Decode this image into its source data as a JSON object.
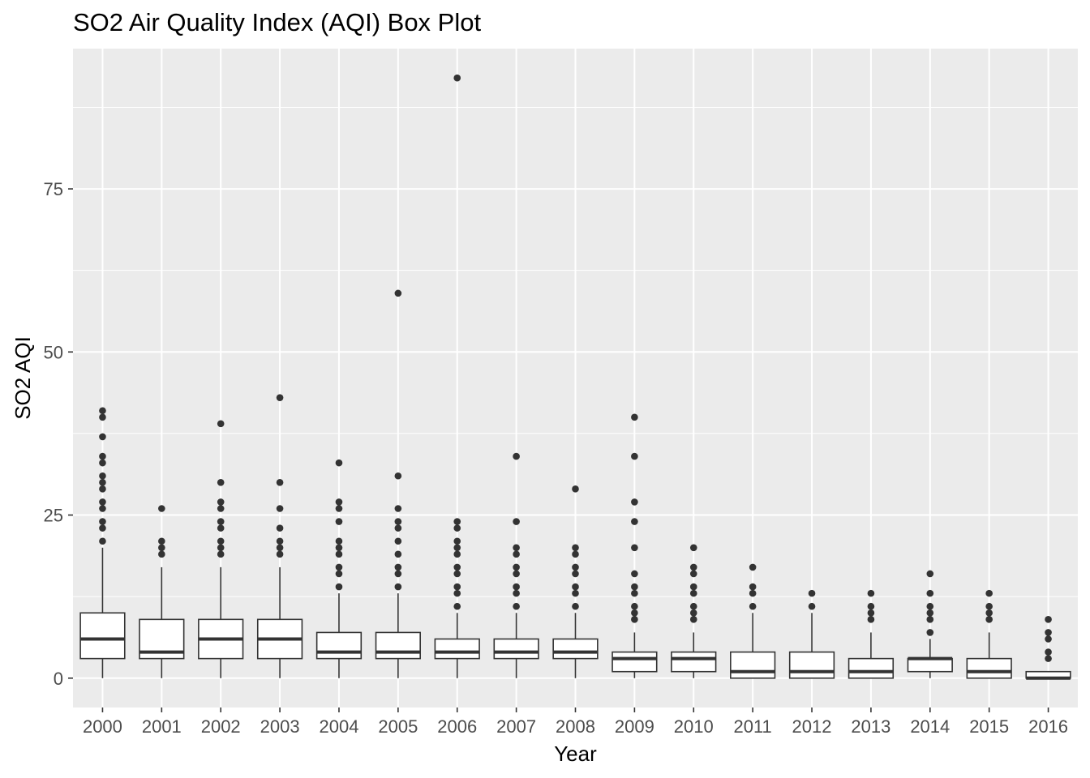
{
  "chart_data": {
    "type": "box",
    "title": "SO2 Air Quality Index (AQI) Box Plot",
    "xlabel": "Year",
    "ylabel": "SO2 AQI",
    "ylim": [
      -4.5,
      96.5
    ],
    "yticks": [
      0,
      25,
      50,
      75
    ],
    "grid": true,
    "legend": "none",
    "colors": {
      "panel": "#ebebeb",
      "grid": "#ffffff",
      "box_fill": "#ffffff",
      "box_line": "#333333",
      "outlier": "#333333",
      "tick_text": "#4d4d4d"
    },
    "categories": [
      "2000",
      "2001",
      "2002",
      "2003",
      "2004",
      "2005",
      "2006",
      "2007",
      "2008",
      "2009",
      "2010",
      "2011",
      "2012",
      "2013",
      "2014",
      "2015",
      "2016"
    ],
    "boxes": [
      {
        "lower": 0,
        "q1": 3,
        "median": 6,
        "q3": 10,
        "upper": 20,
        "outliers": [
          21,
          23,
          24,
          26,
          27,
          29,
          30,
          31,
          33,
          34,
          37,
          40,
          41
        ]
      },
      {
        "lower": 0,
        "q1": 3,
        "median": 4,
        "q3": 9,
        "upper": 17,
        "outliers": [
          19,
          20,
          21,
          26
        ]
      },
      {
        "lower": 0,
        "q1": 3,
        "median": 6,
        "q3": 9,
        "upper": 17,
        "outliers": [
          19,
          20,
          21,
          23,
          24,
          26,
          27,
          30,
          39
        ]
      },
      {
        "lower": 0,
        "q1": 3,
        "median": 6,
        "q3": 9,
        "upper": 17,
        "outliers": [
          19,
          20,
          21,
          23,
          26,
          30,
          43
        ]
      },
      {
        "lower": 0,
        "q1": 3,
        "median": 4,
        "q3": 7,
        "upper": 13,
        "outliers": [
          14,
          16,
          17,
          19,
          20,
          21,
          24,
          26,
          27,
          33
        ]
      },
      {
        "lower": 0,
        "q1": 3,
        "median": 4,
        "q3": 7,
        "upper": 13,
        "outliers": [
          14,
          16,
          17,
          19,
          21,
          23,
          24,
          26,
          31,
          59
        ]
      },
      {
        "lower": 0,
        "q1": 3,
        "median": 4,
        "q3": 6,
        "upper": 10,
        "outliers": [
          11,
          13,
          14,
          16,
          17,
          19,
          20,
          21,
          23,
          24,
          92
        ]
      },
      {
        "lower": 0,
        "q1": 3,
        "median": 4,
        "q3": 6,
        "upper": 10,
        "outliers": [
          11,
          13,
          14,
          16,
          17,
          19,
          20,
          24,
          34
        ]
      },
      {
        "lower": 0,
        "q1": 3,
        "median": 4,
        "q3": 6,
        "upper": 10,
        "outliers": [
          11,
          13,
          14,
          16,
          17,
          19,
          20,
          29
        ]
      },
      {
        "lower": 0,
        "q1": 1,
        "median": 3,
        "q3": 4,
        "upper": 7,
        "outliers": [
          9,
          10,
          11,
          13,
          14,
          16,
          20,
          24,
          27,
          34,
          40
        ]
      },
      {
        "lower": 0,
        "q1": 1,
        "median": 3,
        "q3": 4,
        "upper": 7,
        "outliers": [
          9,
          10,
          11,
          13,
          14,
          16,
          17,
          20
        ]
      },
      {
        "lower": 0,
        "q1": 0,
        "median": 1,
        "q3": 4,
        "upper": 10,
        "outliers": [
          11,
          13,
          14,
          17
        ]
      },
      {
        "lower": 0,
        "q1": 0,
        "median": 1,
        "q3": 4,
        "upper": 10,
        "outliers": [
          11,
          13
        ]
      },
      {
        "lower": 0,
        "q1": 0,
        "median": 1,
        "q3": 3,
        "upper": 7,
        "outliers": [
          9,
          10,
          11,
          13
        ]
      },
      {
        "lower": 0,
        "q1": 1,
        "median": 3,
        "q3": 3,
        "upper": 6,
        "outliers": [
          7,
          9,
          10,
          11,
          13,
          16
        ]
      },
      {
        "lower": 0,
        "q1": 0,
        "median": 1,
        "q3": 3,
        "upper": 7,
        "outliers": [
          9,
          10,
          11,
          13
        ]
      },
      {
        "lower": 0,
        "q1": 0,
        "median": 0,
        "q3": 1,
        "upper": 1,
        "outliers": [
          3,
          4,
          6,
          7,
          9
        ]
      }
    ]
  }
}
